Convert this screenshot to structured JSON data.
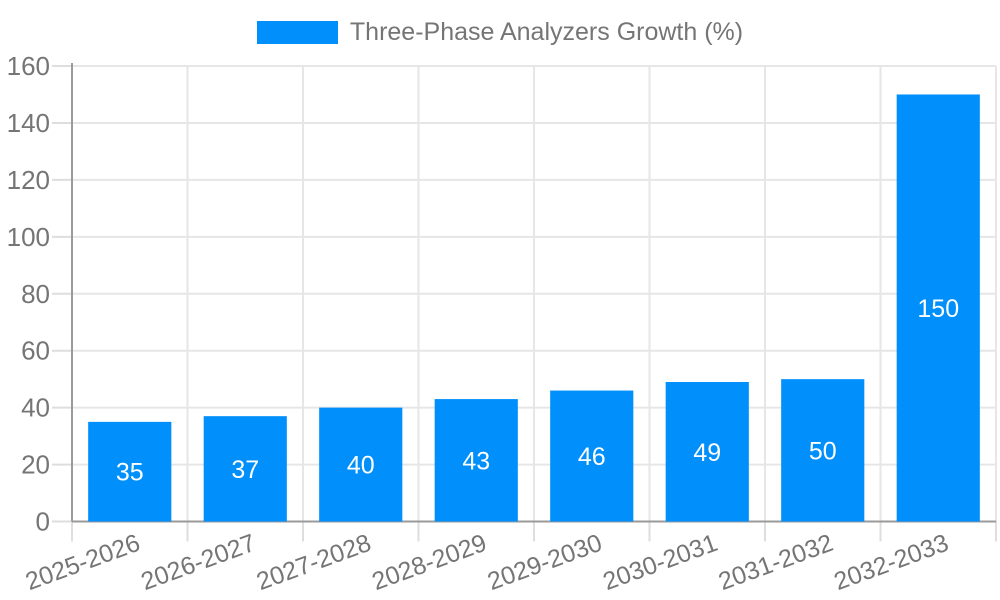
{
  "chart": {
    "legend": {
      "label": "Three-Phase Analyzers Growth (%)",
      "marker": "rect"
    }
  },
  "chart_data": {
    "type": "bar",
    "title": "",
    "series_name": "Three-Phase Analyzers Growth (%)",
    "categories": [
      "2025-2026",
      "2026-2027",
      "2027-2028",
      "2028-2029",
      "2029-2030",
      "2030-2031",
      "2031-2032",
      "2032-2033"
    ],
    "values": [
      35,
      37,
      40,
      43,
      46,
      49,
      50,
      150
    ],
    "value_labels": [
      "35",
      "37",
      "40",
      "43",
      "46",
      "49",
      "50",
      "150"
    ],
    "xlabel": "",
    "ylabel": "",
    "ylim": [
      0,
      160
    ],
    "yticks": [
      0,
      20,
      40,
      60,
      80,
      100,
      120,
      140,
      160
    ],
    "ytick_labels": [
      "0",
      "20",
      "40",
      "60",
      "80",
      "100",
      "120",
      "140",
      "160"
    ],
    "grid": true,
    "legend_position": "top",
    "x_label_rotation_deg": -20,
    "colors": {
      "bar": "#008FFB",
      "bar_value_label": "#FFFFFF",
      "axis_tick_label": "#757575",
      "legend_text": "#757575",
      "gridline": "#E6E6E6",
      "tick_mark": "#DEDEDE",
      "axis_line": "#9A9A9A",
      "background": "#FFFFFF"
    }
  }
}
